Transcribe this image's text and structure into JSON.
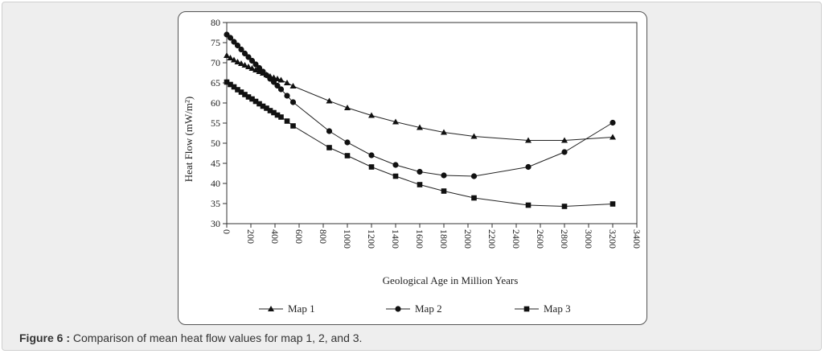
{
  "caption": {
    "label": "Figure 6 :",
    "text": " Comparison of mean heat flow values for map 1, 2, and 3."
  },
  "chart_data": {
    "type": "line",
    "title": "",
    "xlabel": "Geological Age in Million Years",
    "ylabel": "Heat Flow (mW/m²)",
    "xlim": [
      0,
      3400
    ],
    "ylim": [
      30,
      80
    ],
    "xticks": [
      0,
      200,
      400,
      600,
      800,
      1000,
      1200,
      1400,
      1600,
      1800,
      2000,
      2200,
      2400,
      2600,
      2800,
      3000,
      3200,
      3400
    ],
    "yticks": [
      30,
      35,
      40,
      45,
      50,
      55,
      60,
      65,
      70,
      75,
      80
    ],
    "grid": false,
    "legend_position": "bottom",
    "series": [
      {
        "name": "Map 1",
        "marker": "triangle",
        "x": [
          0,
          30,
          60,
          90,
          120,
          150,
          180,
          210,
          240,
          270,
          300,
          330,
          360,
          390,
          420,
          450,
          500,
          550,
          850,
          1000,
          1200,
          1400,
          1600,
          1800,
          2050,
          2500,
          2800,
          3200
        ],
        "y": [
          71.8,
          71.2,
          70.7,
          70.2,
          69.8,
          69.4,
          69.0,
          68.6,
          68.2,
          67.8,
          67.4,
          67.0,
          66.6,
          66.3,
          66.0,
          65.7,
          65.0,
          64.2,
          60.5,
          58.8,
          56.9,
          55.3,
          53.9,
          52.7,
          51.7,
          50.7,
          50.7,
          51.5
        ]
      },
      {
        "name": "Map 2",
        "marker": "circle",
        "x": [
          0,
          30,
          60,
          90,
          120,
          150,
          180,
          210,
          240,
          270,
          300,
          330,
          360,
          390,
          420,
          450,
          500,
          550,
          850,
          1000,
          1200,
          1400,
          1600,
          1800,
          2050,
          2500,
          2800,
          3200
        ],
        "y": [
          77.0,
          76.2,
          75.2,
          74.3,
          73.3,
          72.3,
          71.4,
          70.5,
          69.6,
          68.7,
          67.8,
          66.9,
          66.0,
          65.2,
          64.3,
          63.4,
          61.8,
          60.2,
          53.0,
          50.2,
          47.0,
          44.6,
          42.9,
          42.0,
          41.8,
          44.1,
          47.8,
          55.1
        ]
      },
      {
        "name": "Map 3",
        "marker": "square",
        "x": [
          0,
          30,
          60,
          90,
          120,
          150,
          180,
          210,
          240,
          270,
          300,
          330,
          360,
          390,
          420,
          450,
          500,
          550,
          850,
          1000,
          1200,
          1400,
          1600,
          1800,
          2050,
          2500,
          2800,
          3200
        ],
        "y": [
          65.2,
          64.6,
          64.0,
          63.3,
          62.7,
          62.1,
          61.5,
          61.0,
          60.4,
          59.8,
          59.2,
          58.7,
          58.1,
          57.6,
          57.0,
          56.5,
          55.5,
          54.3,
          48.9,
          46.9,
          44.1,
          41.8,
          39.7,
          38.1,
          36.4,
          34.6,
          34.3,
          34.9
        ]
      }
    ]
  }
}
